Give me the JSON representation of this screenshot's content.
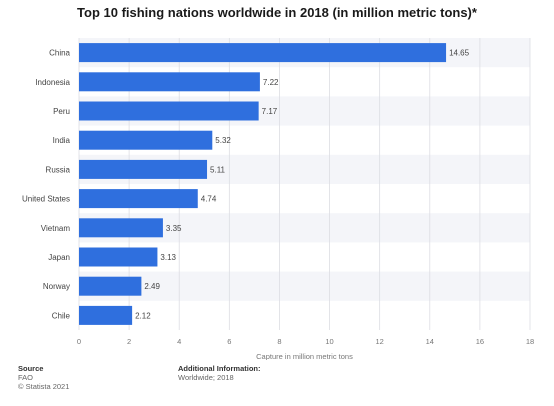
{
  "chart_data": {
    "type": "bar",
    "orientation": "horizontal",
    "title": "Top 10 fishing nations worldwide in 2018 (in million metric tons)*",
    "categories": [
      "China",
      "Indonesia",
      "Peru",
      "India",
      "Russia",
      "United States",
      "Vietnam",
      "Japan",
      "Norway",
      "Chile"
    ],
    "values": [
      14.65,
      7.22,
      7.17,
      5.32,
      5.11,
      4.74,
      3.35,
      3.13,
      2.49,
      2.12
    ],
    "value_labels": [
      "14.65",
      "7.22",
      "7.17",
      "5.32",
      "5.11",
      "4.74",
      "3.35",
      "3.13",
      "2.49",
      "2.12"
    ],
    "xlabel": "Capture in million metric tons",
    "ylabel": "",
    "xlim": [
      0,
      18
    ],
    "xticks": [
      0,
      2,
      4,
      6,
      8,
      10,
      12,
      14,
      16,
      18
    ],
    "grid": true,
    "bar_color": "#2f6fde"
  },
  "footer": {
    "source_heading": "Source",
    "source_lines": [
      "FAO",
      "© Statista 2021"
    ],
    "info_heading": "Additional Information:",
    "info_lines": [
      "Worldwide; 2018"
    ]
  }
}
